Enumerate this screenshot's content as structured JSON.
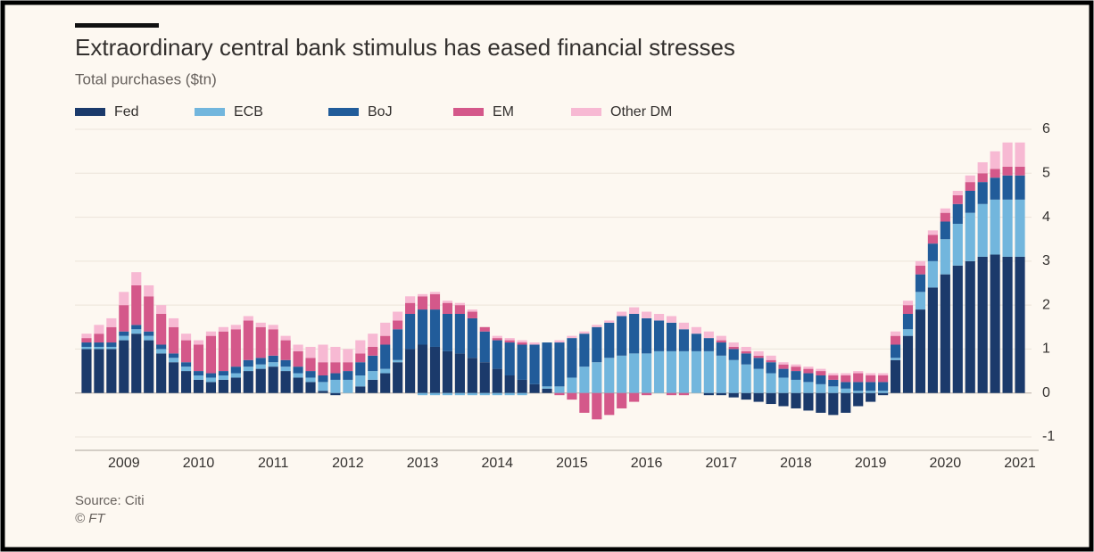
{
  "chart_data": {
    "type": "stacked-bar",
    "title": "Extraordinary central bank stimulus has eased financial stresses",
    "subtitle": "Total purchases ($tn)",
    "source": "Source: Citi",
    "credit": "© FT",
    "categories": [
      null,
      null,
      null,
      "2009",
      null,
      null,
      null,
      null,
      null,
      "2010",
      null,
      null,
      null,
      null,
      null,
      "2011",
      null,
      null,
      null,
      null,
      null,
      "2012",
      null,
      null,
      null,
      null,
      null,
      "2013",
      null,
      null,
      null,
      null,
      null,
      "2014",
      null,
      null,
      null,
      null,
      null,
      "2015",
      null,
      null,
      null,
      null,
      null,
      "2016",
      null,
      null,
      null,
      null,
      null,
      "2017",
      null,
      null,
      null,
      null,
      null,
      "2018",
      null,
      null,
      null,
      null,
      null,
      "2019",
      null,
      null,
      null,
      null,
      null,
      "2020",
      null,
      null,
      null,
      null,
      null,
      "2021"
    ],
    "series": [
      {
        "name": "Fed",
        "color": "#1b3a6b",
        "values": [
          1.0,
          1.0,
          1.0,
          1.2,
          1.35,
          1.2,
          0.9,
          0.7,
          0.5,
          0.3,
          0.25,
          0.3,
          0.35,
          0.5,
          0.55,
          0.6,
          0.5,
          0.35,
          0.25,
          0.05,
          -0.05,
          0,
          0.15,
          0.3,
          0.45,
          0.7,
          1.0,
          1.1,
          1.05,
          0.95,
          0.9,
          0.8,
          0.7,
          0.55,
          0.4,
          0.3,
          0.2,
          0.1,
          0,
          0,
          0,
          0,
          0,
          0,
          0,
          0,
          0,
          0,
          0,
          0,
          -0.05,
          -0.05,
          -0.1,
          -0.15,
          -0.2,
          -0.25,
          -0.3,
          -0.35,
          -0.4,
          -0.45,
          -0.5,
          -0.45,
          -0.3,
          -0.2,
          -0.05,
          0.75,
          1.3,
          1.9,
          2.4,
          2.7,
          2.9,
          3.0,
          3.1,
          3.15,
          3.1,
          3.1
        ]
      },
      {
        "name": "ECB",
        "color": "#72b6dd",
        "values": [
          0.05,
          0.05,
          0.05,
          0.1,
          0.1,
          0.1,
          0.1,
          0.1,
          0.1,
          0.1,
          0.1,
          0.1,
          0.1,
          0.1,
          0.1,
          0.1,
          0.1,
          0.1,
          0.1,
          0.2,
          0.3,
          0.3,
          0.25,
          0.2,
          0.1,
          0.05,
          0,
          -0.05,
          -0.05,
          -0.05,
          -0.05,
          -0.05,
          -0.05,
          -0.05,
          -0.05,
          -0.05,
          0,
          0.05,
          0.15,
          0.35,
          0.6,
          0.7,
          0.8,
          0.85,
          0.9,
          0.9,
          0.95,
          0.95,
          0.95,
          0.95,
          0.95,
          0.85,
          0.75,
          0.65,
          0.55,
          0.45,
          0.35,
          0.3,
          0.25,
          0.2,
          0.15,
          0.1,
          0.05,
          0.05,
          0.05,
          0.05,
          0.15,
          0.4,
          0.6,
          0.8,
          0.95,
          1.1,
          1.2,
          1.25,
          1.3,
          1.3
        ]
      },
      {
        "name": "BoJ",
        "color": "#215c9a",
        "values": [
          0.1,
          0.1,
          0.1,
          0.1,
          0.1,
          0.1,
          0.1,
          0.1,
          0.1,
          0.1,
          0.1,
          0.1,
          0.15,
          0.15,
          0.15,
          0.15,
          0.15,
          0.15,
          0.15,
          0.15,
          0.15,
          0.2,
          0.3,
          0.35,
          0.55,
          0.7,
          0.8,
          0.8,
          0.85,
          0.85,
          0.9,
          0.9,
          0.7,
          0.65,
          0.75,
          0.8,
          0.9,
          1.0,
          1.0,
          0.9,
          0.75,
          0.8,
          0.8,
          0.9,
          0.9,
          0.8,
          0.7,
          0.65,
          0.5,
          0.4,
          0.3,
          0.3,
          0.25,
          0.25,
          0.25,
          0.25,
          0.2,
          0.2,
          0.2,
          0.2,
          0.15,
          0.15,
          0.2,
          0.2,
          0.2,
          0.3,
          0.35,
          0.4,
          0.4,
          0.4,
          0.45,
          0.5,
          0.5,
          0.5,
          0.55,
          0.55
        ]
      },
      {
        "name": "EM",
        "color": "#d4588a",
        "values": [
          0.1,
          0.2,
          0.35,
          0.6,
          0.9,
          0.8,
          0.7,
          0.6,
          0.5,
          0.6,
          0.85,
          0.9,
          0.85,
          0.9,
          0.7,
          0.6,
          0.45,
          0.35,
          0.3,
          0.3,
          0.25,
          0.2,
          0.2,
          0.2,
          0.2,
          0.2,
          0.25,
          0.3,
          0.35,
          0.25,
          0.2,
          0.15,
          0.1,
          0.05,
          0.05,
          0.05,
          0,
          0,
          -0.05,
          -0.15,
          -0.45,
          -0.6,
          -0.5,
          -0.35,
          -0.2,
          -0.05,
          0,
          -0.05,
          -0.05,
          0,
          0,
          0.05,
          0.05,
          0.05,
          0.05,
          0.05,
          0.1,
          0.1,
          0.1,
          0.1,
          0.1,
          0.15,
          0.2,
          0.15,
          0.15,
          0.2,
          0.2,
          0.2,
          0.2,
          0.2,
          0.2,
          0.2,
          0.2,
          0.2,
          0.2,
          0.2
        ]
      },
      {
        "name": "Other DM",
        "color": "#f7b9d3",
        "values": [
          0.1,
          0.2,
          0.2,
          0.3,
          0.3,
          0.25,
          0.2,
          0.2,
          0.15,
          0.1,
          0.1,
          0.1,
          0.1,
          0.1,
          0.1,
          0.1,
          0.1,
          0.15,
          0.25,
          0.4,
          0.35,
          0.3,
          0.3,
          0.3,
          0.3,
          0.2,
          0.15,
          0.05,
          0.05,
          0.05,
          0.05,
          0.05,
          0,
          0.05,
          0.05,
          0.05,
          0.05,
          0,
          0.05,
          0.05,
          0.05,
          0.05,
          0.05,
          0.1,
          0.15,
          0.15,
          0.15,
          0.15,
          0.15,
          0.15,
          0.15,
          0.1,
          0.1,
          0.1,
          0.1,
          0.1,
          0.05,
          0.05,
          0.05,
          0.05,
          0.05,
          0.05,
          0.05,
          0.05,
          0.05,
          0.1,
          0.1,
          0.1,
          0.1,
          0.1,
          0.1,
          0.15,
          0.25,
          0.4,
          0.55,
          0.55
        ]
      }
    ],
    "ylim": [
      -1,
      6
    ],
    "yticks": [
      -1,
      0,
      1,
      2,
      3,
      4,
      5,
      6
    ],
    "grid": true,
    "legend": "top-left"
  }
}
